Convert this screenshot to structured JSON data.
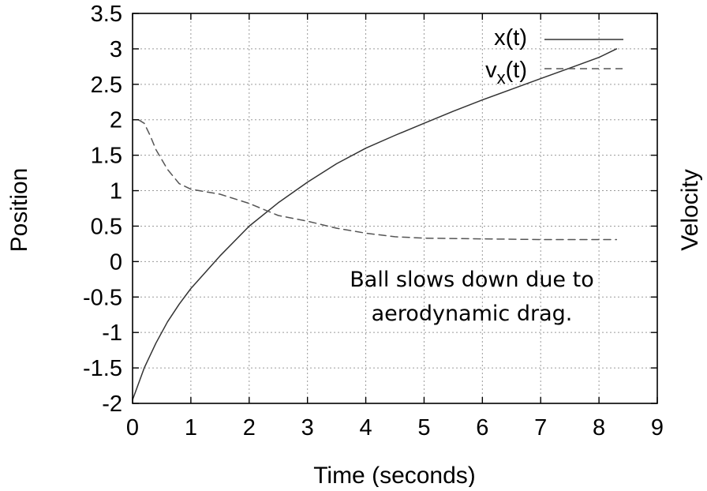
{
  "chart_data": {
    "type": "line",
    "xlabel": "Time (seconds)",
    "ylabel": "Position",
    "y2label": "Velocity",
    "xlim": [
      0,
      9
    ],
    "ylim": [
      -2,
      3.5
    ],
    "x_ticks": [
      "0",
      "1",
      "2",
      "3",
      "4",
      "5",
      "6",
      "7",
      "8",
      "9"
    ],
    "y_ticks": [
      "-2",
      "-1.5",
      "-1",
      "-0.5",
      "0",
      "0.5",
      "1",
      "1.5",
      "2",
      "2.5",
      "3",
      "3.5"
    ],
    "grid": true,
    "legend": "top-right",
    "series": [
      {
        "name": "x(t)",
        "style": "solid",
        "color": "#333333",
        "x": [
          0,
          0.2,
          0.4,
          0.6,
          0.8,
          1,
          1.5,
          2,
          2.5,
          3,
          3.5,
          4,
          4.5,
          5,
          5.5,
          6,
          6.5,
          7,
          7.5,
          8,
          8.3
        ],
        "y": [
          -1.95,
          -1.5,
          -1.15,
          -0.85,
          -0.6,
          -0.38,
          0.08,
          0.5,
          0.83,
          1.12,
          1.38,
          1.6,
          1.78,
          1.95,
          2.12,
          2.28,
          2.43,
          2.58,
          2.73,
          2.88,
          3.0
        ]
      },
      {
        "name": "v",
        "name_subscript": "x",
        "name_suffix": "(t)",
        "style": "dashed",
        "color": "#555555",
        "x": [
          0.1,
          0.2,
          0.3,
          0.4,
          0.6,
          0.8,
          1,
          1.5,
          2,
          2.5,
          3,
          3.5,
          4,
          4.5,
          5,
          6,
          7,
          8,
          8.3
        ],
        "y": [
          2.0,
          1.95,
          1.78,
          1.58,
          1.3,
          1.1,
          1.02,
          0.95,
          0.82,
          0.65,
          0.57,
          0.47,
          0.4,
          0.35,
          0.33,
          0.32,
          0.31,
          0.31,
          0.31
        ]
      }
    ],
    "annotation": {
      "lines": [
        "Ball slows down due to",
        "aerodynamic drag."
      ]
    }
  }
}
